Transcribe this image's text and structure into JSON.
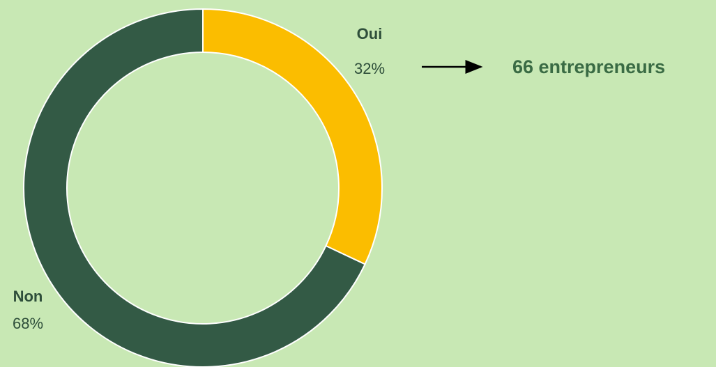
{
  "chart_data": {
    "type": "pie",
    "donut": true,
    "categories": [
      "Oui",
      "Non"
    ],
    "values": [
      32,
      68
    ],
    "value_labels": [
      "32%",
      "68%"
    ],
    "colors": [
      "#fbbd00",
      "#335a45"
    ],
    "annotation": "66 entrepreneurs"
  }
}
